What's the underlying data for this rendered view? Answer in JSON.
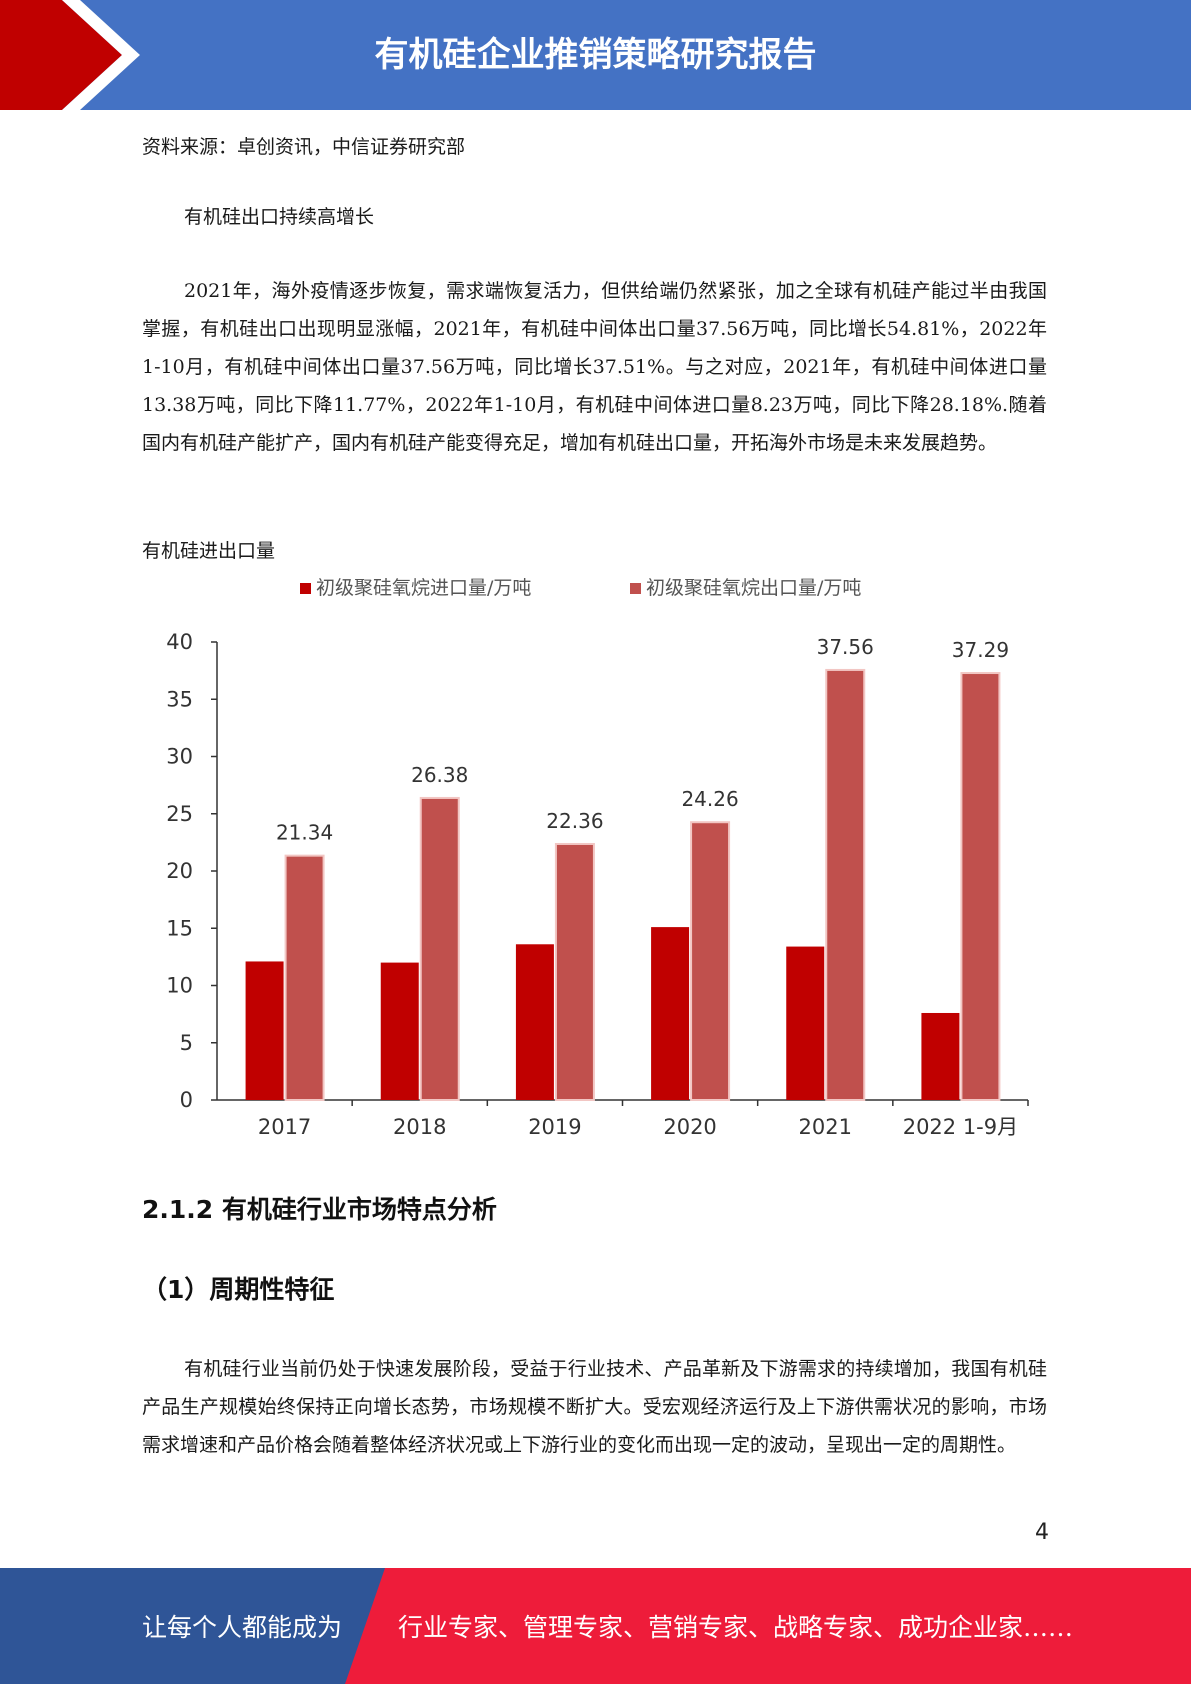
{
  "header": {
    "title": "有机硅企业推销策略研究报告"
  },
  "source_note": "资料来源：卓创资讯，中信证券研究部",
  "subheading": "有机硅出口持续高增长",
  "paragraph1": "2021年，海外疫情逐步恢复，需求端恢复活力，但供给端仍然紧张，加之全球有机硅产能过半由我国掌握，有机硅出口出现明显涨幅，2021年，有机硅中间体出口量37.56万吨，同比增长54.81%，2022年1-10月，有机硅中间体出口量37.56万吨，同比增长37.51%。与之对应，2021年，有机硅中间体进口量13.38万吨，同比下降11.77%，2022年1-10月，有机硅中间体进口量8.23万吨，同比下降28.18%.随着国内有机硅产能扩产，国内有机硅产能变得充足，增加有机硅出口量，开拓海外市场是未来发展趋势。",
  "chart_caption": "有机硅进出口量",
  "colors": {
    "import": "#c00000",
    "export": "#c0504d",
    "header": "#4472c4",
    "footer_blue": "#2f5597",
    "footer_red": "#ee1c3a",
    "flag_red": "#c00000"
  },
  "chart_data": {
    "type": "bar",
    "categories": [
      "2017",
      "2018",
      "2019",
      "2020",
      "2021",
      "2022 1-9月"
    ],
    "series": [
      {
        "name": "初级聚硅氧烷进口量/万吨",
        "values": [
          12.1,
          12.0,
          13.6,
          15.1,
          13.4,
          7.6
        ],
        "labels": false
      },
      {
        "name": "初级聚硅氧烷出口量/万吨",
        "values": [
          21.34,
          26.38,
          22.36,
          24.26,
          37.56,
          37.29
        ],
        "labels": true
      }
    ],
    "ylim": [
      0,
      40
    ],
    "yticks": [
      0,
      5,
      10,
      15,
      20,
      25,
      30,
      35,
      40
    ],
    "legend": "top",
    "grid": false
  },
  "section_heading": "2.1.2 有机硅行业市场特点分析",
  "sub_section_heading": "（1）周期性特征",
  "paragraph2": "有机硅行业当前仍处于快速发展阶段，受益于行业技术、产品革新及下游需求的持续增加，我国有机硅产品生产规模始终保持正向增长态势，市场规模不断扩大。受宏观经济运行及上下游供需状况的影响，市场需求增速和产品价格会随着整体经济状况或上下游行业的变化而出现一定的波动，呈现出一定的周期性。",
  "page_number": "4",
  "footer": {
    "left": "让每个人都能成为",
    "right": "行业专家、管理专家、营销专家、战略专家、成功企业家……"
  }
}
